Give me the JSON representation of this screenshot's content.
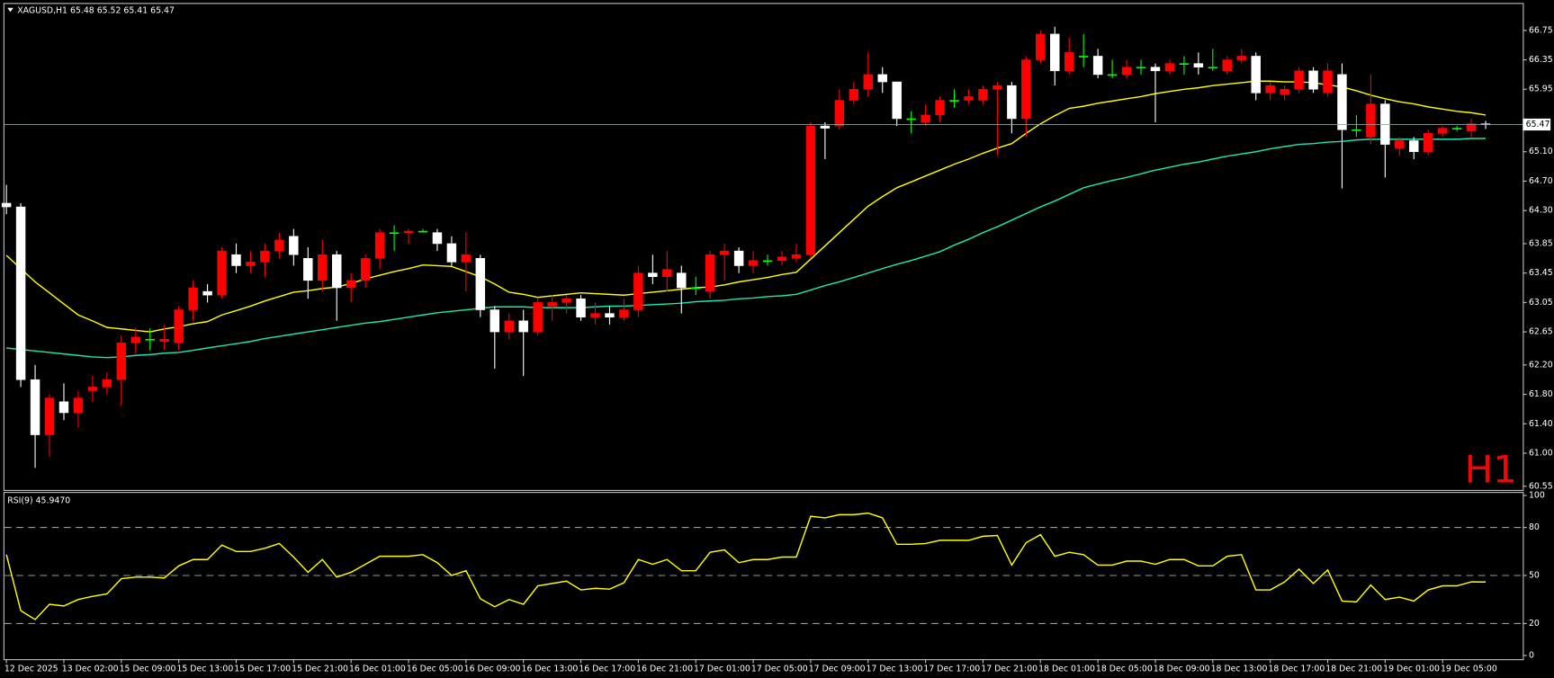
{
  "chart_data": [
    {
      "type": "candlestick",
      "title": "XAGUSD,H1  65.48 65.52 65.41 65.47",
      "categories": [
        "12 Dec 2025",
        null,
        null,
        null,
        "13 Dec 02:00",
        null,
        null,
        null,
        "15 Dec 09:00",
        null,
        null,
        null,
        "15 Dec 13:00",
        null,
        null,
        null,
        "15 Dec 17:00",
        null,
        null,
        null,
        "15 Dec 21:00",
        null,
        null,
        null,
        "16 Dec 01:00",
        null,
        null,
        null,
        "16 Dec 05:00",
        null,
        null,
        null,
        "16 Dec 09:00",
        null,
        null,
        null,
        "16 Dec 13:00",
        null,
        null,
        null,
        "16 Dec 17:00",
        null,
        null,
        null,
        "16 Dec 21:00",
        null,
        null,
        null,
        "17 Dec 01:00",
        null,
        null,
        null,
        "17 Dec 05:00",
        null,
        null,
        null,
        "17 Dec 09:00",
        null,
        null,
        null,
        "17 Dec 13:00",
        null,
        null,
        null,
        "17 Dec 17:00",
        null,
        null,
        null,
        "17 Dec 21:00",
        null,
        null,
        null,
        "18 Dec 01:00",
        null,
        null,
        null,
        "18 Dec 05:00",
        null,
        null,
        null,
        "18 Dec 09:00",
        null,
        null,
        null,
        "18 Dec 13:00",
        null,
        null,
        null,
        "18 Dec 17:00",
        null,
        null,
        null,
        "18 Dec 21:00",
        null,
        null,
        null,
        "19 Dec 01:00",
        null,
        null,
        null,
        "19 Dec 05:00",
        null,
        null,
        null
      ],
      "open": [
        64.4,
        64.35,
        62.0,
        61.25,
        61.7,
        61.55,
        61.85,
        61.9,
        62.0,
        62.5,
        62.55,
        62.52,
        62.5,
        62.95,
        63.2,
        63.15,
        63.7,
        63.55,
        63.6,
        63.75,
        63.95,
        63.65,
        63.35,
        63.7,
        63.25,
        63.35,
        63.65,
        64.0,
        64.0,
        64.02,
        64.0,
        63.85,
        63.6,
        63.65,
        62.95,
        62.65,
        62.8,
        62.65,
        63.0,
        63.05,
        63.1,
        62.85,
        62.9,
        62.85,
        62.95,
        63.45,
        63.4,
        63.45,
        63.25,
        63.2,
        63.7,
        63.75,
        63.55,
        63.62,
        63.62,
        63.65,
        63.7,
        65.45,
        65.45,
        65.8,
        65.95,
        66.15,
        66.05,
        65.55,
        65.5,
        65.6,
        65.8,
        65.8,
        65.8,
        65.95,
        66.0,
        65.55,
        66.35,
        66.7,
        66.2,
        66.4,
        66.4,
        66.15,
        66.15,
        66.25,
        66.25,
        66.2,
        66.3,
        66.3,
        66.25,
        66.2,
        66.35,
        66.4,
        65.9,
        65.88,
        65.95,
        66.2,
        65.9,
        66.15,
        65.4,
        65.3,
        65.75,
        65.15,
        65.25,
        65.1,
        65.35,
        65.42,
        65.38,
        65.48
      ],
      "high": [
        64.65,
        64.4,
        62.2,
        61.8,
        61.95,
        61.85,
        62.05,
        62.1,
        62.6,
        62.7,
        62.7,
        62.75,
        63.0,
        63.35,
        63.3,
        63.8,
        63.85,
        63.75,
        63.85,
        64.0,
        64.05,
        63.8,
        63.9,
        63.75,
        63.45,
        63.7,
        64.05,
        64.1,
        64.05,
        64.05,
        64.05,
        63.95,
        64.0,
        63.7,
        63.0,
        62.9,
        62.95,
        63.1,
        63.15,
        63.15,
        63.15,
        63.05,
        63.0,
        63.1,
        63.55,
        63.7,
        63.75,
        63.55,
        63.4,
        63.75,
        63.85,
        63.8,
        63.75,
        63.7,
        63.75,
        63.85,
        65.5,
        65.5,
        65.95,
        66.05,
        66.45,
        66.25,
        66.05,
        65.65,
        65.75,
        65.85,
        65.95,
        65.95,
        66.0,
        66.05,
        66.05,
        66.4,
        66.75,
        66.8,
        66.65,
        66.7,
        66.5,
        66.35,
        66.35,
        66.35,
        66.3,
        66.35,
        66.4,
        66.45,
        66.5,
        66.4,
        66.5,
        66.45,
        66.05,
        66.0,
        66.25,
        66.25,
        66.3,
        66.3,
        65.6,
        66.15,
        65.8,
        65.3,
        65.3,
        65.4,
        65.45,
        65.45,
        65.55,
        65.52
      ],
      "low": [
        64.25,
        61.9,
        60.8,
        60.95,
        61.45,
        61.35,
        61.7,
        61.8,
        61.65,
        62.35,
        62.4,
        62.4,
        62.4,
        62.8,
        63.05,
        63.1,
        63.45,
        63.45,
        63.4,
        63.65,
        63.55,
        63.1,
        63.2,
        62.8,
        63.05,
        63.25,
        63.5,
        63.75,
        63.85,
        64.0,
        63.75,
        63.55,
        63.2,
        62.85,
        62.15,
        62.55,
        62.05,
        62.6,
        62.8,
        62.9,
        62.8,
        62.75,
        62.75,
        62.8,
        62.85,
        63.3,
        63.2,
        62.9,
        63.15,
        63.1,
        63.35,
        63.45,
        63.45,
        63.55,
        63.55,
        63.6,
        63.65,
        65.0,
        65.4,
        65.75,
        65.85,
        65.9,
        65.45,
        65.35,
        65.45,
        65.5,
        65.7,
        65.75,
        65.75,
        65.05,
        65.35,
        65.3,
        66.3,
        66.0,
        66.15,
        66.25,
        66.1,
        66.1,
        66.1,
        66.15,
        65.5,
        66.15,
        66.15,
        66.15,
        66.2,
        66.15,
        66.3,
        65.8,
        65.8,
        65.8,
        65.9,
        65.9,
        65.85,
        64.6,
        65.3,
        65.2,
        64.75,
        65.05,
        65.0,
        65.05,
        65.3,
        65.38,
        65.3,
        65.41
      ],
      "close": [
        64.35,
        62.0,
        61.25,
        61.75,
        61.55,
        61.75,
        61.9,
        62.0,
        62.5,
        62.58,
        62.55,
        62.55,
        62.95,
        63.25,
        63.15,
        63.75,
        63.55,
        63.6,
        63.75,
        63.9,
        63.7,
        63.35,
        63.7,
        63.25,
        63.35,
        63.65,
        64.0,
        64.0,
        64.02,
        64.02,
        63.85,
        63.6,
        63.7,
        62.95,
        62.65,
        62.8,
        62.65,
        63.05,
        63.05,
        63.1,
        62.85,
        62.9,
        62.85,
        62.95,
        63.45,
        63.4,
        63.5,
        63.25,
        63.25,
        63.7,
        63.75,
        63.55,
        63.62,
        63.62,
        63.67,
        63.7,
        65.45,
        65.42,
        65.8,
        65.95,
        66.15,
        66.05,
        65.55,
        65.55,
        65.6,
        65.8,
        65.8,
        65.85,
        65.95,
        66.0,
        65.55,
        66.35,
        66.7,
        66.2,
        66.45,
        66.4,
        66.15,
        66.15,
        66.25,
        66.25,
        66.2,
        66.3,
        66.3,
        66.25,
        66.25,
        66.35,
        66.4,
        65.9,
        66.0,
        65.95,
        66.2,
        65.95,
        66.2,
        65.4,
        65.4,
        65.75,
        65.2,
        65.25,
        65.1,
        65.35,
        65.42,
        65.42,
        65.48,
        65.47
      ],
      "up_color": "#ff0000",
      "down_color": "#ffffff",
      "doji_color": "#00ff00",
      "series": [
        {
          "color": "#ffff00",
          "values": [
            63.69,
            63.51,
            63.33,
            63.18,
            63.03,
            62.88,
            62.8,
            62.71,
            62.69,
            62.67,
            62.65,
            62.69,
            62.72,
            62.76,
            62.79,
            62.88,
            62.94,
            63.0,
            63.07,
            63.13,
            63.19,
            63.21,
            63.24,
            63.26,
            63.31,
            63.37,
            63.42,
            63.47,
            63.51,
            63.56,
            63.55,
            63.54,
            63.47,
            63.4,
            63.3,
            63.19,
            63.16,
            63.12,
            63.14,
            63.16,
            63.18,
            63.17,
            63.16,
            63.15,
            63.17,
            63.19,
            63.21,
            63.23,
            63.25,
            63.26,
            63.29,
            63.33,
            63.36,
            63.39,
            63.43,
            63.46,
            63.64,
            63.82,
            64.0,
            64.18,
            64.36,
            64.49,
            64.61,
            64.69,
            64.77,
            64.85,
            64.93,
            65.0,
            65.08,
            65.15,
            65.21,
            65.35,
            65.48,
            65.59,
            65.69,
            65.72,
            65.76,
            65.79,
            65.82,
            65.85,
            65.89,
            65.92,
            65.95,
            65.97,
            66.0,
            66.02,
            66.04,
            66.06,
            66.06,
            66.05,
            66.05,
            66.04,
            66.01,
            65.98,
            65.93,
            65.87,
            65.82,
            65.78,
            65.75,
            65.71,
            65.68,
            65.65,
            65.63,
            65.6
          ]
        },
        {
          "color": "#1fe6b0",
          "values": [
            62.43,
            62.41,
            62.39,
            62.37,
            62.35,
            62.33,
            62.31,
            62.3,
            62.31,
            62.33,
            62.34,
            62.36,
            62.37,
            62.4,
            62.43,
            62.46,
            62.49,
            62.52,
            62.56,
            62.59,
            62.62,
            62.65,
            62.68,
            62.71,
            62.74,
            62.77,
            62.79,
            62.82,
            62.85,
            62.88,
            62.91,
            62.93,
            62.95,
            62.97,
            62.99,
            62.99,
            62.99,
            62.98,
            62.98,
            62.98,
            62.98,
            62.99,
            63.0,
            63.0,
            63.01,
            63.02,
            63.03,
            63.04,
            63.06,
            63.07,
            63.08,
            63.1,
            63.11,
            63.13,
            63.14,
            63.16,
            63.22,
            63.28,
            63.33,
            63.39,
            63.45,
            63.51,
            63.57,
            63.62,
            63.68,
            63.74,
            63.83,
            63.91,
            64.0,
            64.08,
            64.17,
            64.26,
            64.35,
            64.43,
            64.52,
            64.61,
            64.66,
            64.71,
            64.75,
            64.8,
            64.85,
            64.89,
            64.93,
            64.96,
            65.0,
            65.04,
            65.07,
            65.1,
            65.14,
            65.17,
            65.2,
            65.21,
            65.23,
            65.24,
            65.26,
            65.27,
            65.27,
            65.27,
            65.27,
            65.27,
            65.27,
            65.27,
            65.28,
            65.28
          ]
        }
      ],
      "ylim": [
        60.5,
        67.11
      ],
      "yticks": [
        66.75,
        66.35,
        65.95,
        {
          "value": 65.1,
          "label": "65.10"
        },
        {
          "value": 64.7,
          "label": "64.70"
        },
        {
          "value": 64.3,
          "label": "64.30"
        },
        63.85,
        63.45,
        63.05,
        62.65,
        {
          "value": 62.2,
          "label": "62.20"
        },
        {
          "value": 61.8,
          "label": "61.80"
        },
        {
          "value": 61.4,
          "label": "61.40"
        },
        {
          "value": 61,
          "label": "61.00"
        },
        60.55
      ],
      "current_price": 65.47,
      "timeframe": "H1",
      "timeframe_color": "#ff0000"
    },
    {
      "type": "line",
      "title": "RSI(9) 45.9470",
      "color": "#ffff00",
      "values": [
        63,
        28,
        22.5,
        32,
        31,
        35,
        37,
        38.5,
        48,
        49,
        49,
        48.5,
        56,
        60,
        60,
        69,
        65,
        65,
        67,
        70,
        61.5,
        52,
        60,
        49,
        52,
        57,
        62,
        62,
        62,
        63,
        58,
        50,
        53,
        35.5,
        30.5,
        35,
        32,
        43.5,
        45,
        46.5,
        41,
        42,
        41.5,
        45.5,
        60,
        57,
        60,
        53,
        53,
        64.5,
        66,
        58,
        60,
        60,
        61.5,
        61.5,
        87,
        86,
        88,
        88,
        89,
        86,
        69.5,
        69.5,
        70,
        72,
        72,
        72,
        74.5,
        75,
        56.5,
        70.5,
        75.5,
        62,
        64.5,
        63,
        56.5,
        56.5,
        59,
        59,
        57,
        60,
        60,
        56,
        56,
        62,
        63,
        41,
        41,
        46,
        54,
        45,
        53.5,
        34,
        33.5,
        44,
        35,
        36.5,
        34,
        41,
        43.5,
        43.5,
        46,
        45.947
      ],
      "ylim": [
        -2.3,
        101.6
      ],
      "yticks": [
        0,
        20,
        50,
        80,
        100
      ],
      "levels": [
        20,
        50,
        80
      ]
    }
  ]
}
